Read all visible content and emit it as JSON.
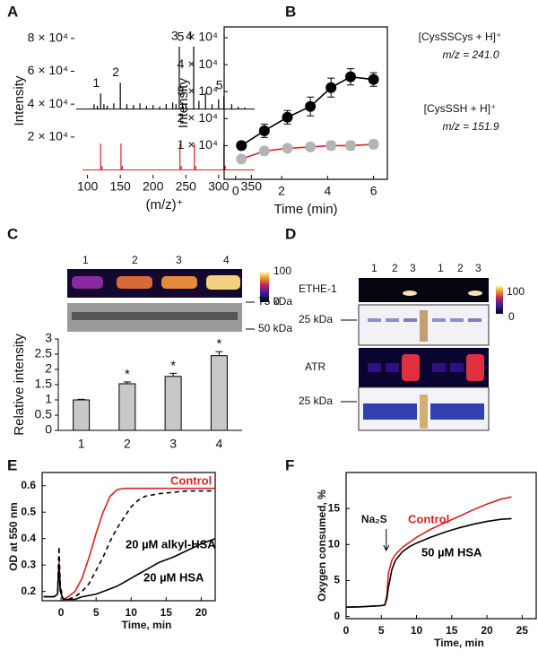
{
  "chart_data": [
    {
      "type": "spectrum",
      "panel": "A",
      "xlabel": "(m/z)⁺",
      "ylabel": "Intensity",
      "xlim": [
        80,
        355
      ],
      "ylim": [
        -3000,
        87000
      ],
      "xticks": [
        100,
        150,
        200,
        250,
        300,
        350
      ],
      "yticks": [
        {
          "value": 20000,
          "label": "2 × 10⁴"
        },
        {
          "value": 40000,
          "label": "4 × 10⁴"
        },
        {
          "value": 60000,
          "label": "6 × 10⁴"
        },
        {
          "value": 80000,
          "label": "8 × 10⁴"
        }
      ],
      "series": [
        {
          "color": "#000000",
          "baseline": 37000,
          "x": [
            110,
            115,
            120,
            125,
            130,
            140,
            150,
            160,
            170,
            180,
            190,
            200,
            210,
            220,
            230,
            235,
            240,
            245,
            250,
            262,
            270,
            280,
            290,
            300,
            308,
            320,
            330,
            340
          ],
          "values": [
            40000,
            39000,
            46500,
            40000,
            39000,
            40500,
            53000,
            40000,
            39500,
            40500,
            39000,
            39500,
            38500,
            40000,
            41000,
            40000,
            75000,
            41000,
            40500,
            75000,
            42000,
            47000,
            40000,
            43000,
            45000,
            40000,
            38500,
            38000
          ],
          "peak_labels": [
            null,
            null,
            "1",
            null,
            null,
            null,
            "2",
            null,
            null,
            null,
            null,
            null,
            null,
            null,
            null,
            null,
            "3",
            null,
            null,
            "4",
            null,
            null,
            null,
            null,
            "5",
            null,
            null,
            null
          ]
        },
        {
          "color": "#e02020",
          "baseline": 0,
          "x": [
            120,
            122,
            151,
            153,
            241,
            243,
            263,
            265,
            308,
            310
          ],
          "values": [
            16000,
            2500,
            16000,
            2500,
            16000,
            2500,
            16000,
            2500,
            16000,
            2500
          ]
        }
      ]
    },
    {
      "type": "line",
      "panel": "B",
      "xlabel": "Time (min)",
      "ylabel": "Intensity",
      "frame": true,
      "xlim": [
        -0.5,
        6.6
      ],
      "ylim": [
        -2500,
        54000
      ],
      "xticks": [
        0,
        2,
        4,
        6
      ],
      "yticks": [
        {
          "value": 10000,
          "label": "1 × 10⁴"
        },
        {
          "value": 20000,
          "label": "2 × 10⁴"
        },
        {
          "value": 30000,
          "label": "3 × 10⁴"
        },
        {
          "value": 40000,
          "label": "4 × 10⁴"
        },
        {
          "value": 50000,
          "label": "5 × 10⁴"
        }
      ],
      "x": [
        0.25,
        1.25,
        2.25,
        3.25,
        4.15,
        5,
        6
      ],
      "series": [
        {
          "name": "[CysSSCys + H]⁺",
          "note": "m/z = 241.0",
          "color": "#000000",
          "marker": "#000000",
          "values": [
            10000,
            15500,
            20500,
            24500,
            31500,
            35500,
            34500
          ],
          "errors": [
            1500,
            2500,
            2500,
            3500,
            3500,
            3000,
            2500
          ]
        },
        {
          "name": "[CysSSH + H]⁺",
          "note": "m/z = 151.9",
          "color": "#e02020",
          "marker": "#b4b4b4",
          "values": [
            5000,
            8000,
            9000,
            9500,
            10000,
            10000,
            10500
          ],
          "errors": [
            1000,
            1000,
            1000,
            1000,
            1500,
            1500,
            1500
          ]
        }
      ]
    },
    {
      "type": "bar",
      "panel": "C",
      "ylabel": "Relative intensity",
      "color": "#c8c8c8",
      "categories": [
        "1",
        "2",
        "3",
        "4"
      ],
      "values": [
        1,
        1.53,
        1.77,
        2.45
      ],
      "errors": [
        0.02,
        0.06,
        0.1,
        0.13
      ],
      "significance": [
        null,
        "*",
        "*",
        "*"
      ],
      "ylim": [
        0,
        3
      ],
      "yticks": [
        0,
        0.5,
        1,
        1.5,
        2,
        2.5,
        3
      ],
      "gel": {
        "lanes": [
          "1",
          "2",
          "3",
          "4"
        ],
        "markers": [
          "75 kDa",
          "50 kDa"
        ],
        "colorbar": [
          "100",
          "0"
        ]
      }
    },
    {
      "type": "line",
      "panel": "E",
      "xlabel": "Time, min",
      "ylabel": "OD at 550 nm",
      "frame": true,
      "xlim": [
        -2.7,
        22
      ],
      "ylim": [
        0.165,
        0.65
      ],
      "xticks": [
        0,
        5,
        10,
        15,
        20
      ],
      "yticks": [
        0.2,
        0.3,
        0.4,
        0.5,
        0.6
      ],
      "x": [
        -2.5,
        -1,
        -0.5,
        -0.3,
        -0.1,
        0.3,
        1,
        2,
        3,
        4,
        5,
        6,
        7,
        8,
        9,
        10,
        11,
        12,
        14,
        16,
        18,
        20,
        22
      ],
      "series": [
        {
          "name": "Control",
          "color": "#e02020",
          "values": [
            0.18,
            0.18,
            0.19,
            0.32,
            0.2,
            0.17,
            0.18,
            0.2,
            0.25,
            0.33,
            0.42,
            0.5,
            0.56,
            0.585,
            0.59,
            0.59,
            0.59,
            0.59,
            0.59,
            0.59,
            0.59,
            0.59,
            0.59
          ]
        },
        {
          "name": "20 µM alkyl-HSA",
          "color": "#000000",
          "dash": true,
          "values": [
            0.18,
            0.18,
            0.19,
            0.37,
            0.22,
            0.17,
            0.17,
            0.18,
            0.2,
            0.23,
            0.28,
            0.33,
            0.39,
            0.44,
            0.48,
            0.52,
            0.545,
            0.56,
            0.57,
            0.575,
            0.58,
            0.58,
            0.58
          ]
        },
        {
          "name": "20 µM HSA",
          "color": "#000000",
          "values": [
            0.18,
            0.18,
            0.19,
            0.3,
            0.2,
            0.17,
            0.17,
            0.17,
            0.18,
            0.185,
            0.19,
            0.2,
            0.21,
            0.22,
            0.235,
            0.25,
            0.265,
            0.28,
            0.31,
            0.33,
            0.355,
            0.38,
            0.4
          ]
        }
      ]
    },
    {
      "type": "line",
      "panel": "F",
      "xlabel": "Time, min",
      "ylabel": "Oxygen consumed, %",
      "frame": true,
      "xlim": [
        0,
        27
      ],
      "ylim": [
        -0.3,
        20
      ],
      "xticks": [
        0,
        5,
        10,
        15,
        20,
        25
      ],
      "yticks": [
        0,
        5,
        10,
        15
      ],
      "annotation": "Na₂S",
      "x": [
        0,
        2,
        4,
        5,
        5.5,
        5.8,
        6,
        6.5,
        7,
        8,
        9,
        10,
        12,
        14,
        16,
        18,
        20,
        22,
        23.5
      ],
      "series": [
        {
          "name": "Control",
          "color": "#e02020",
          "values": [
            1.3,
            1.35,
            1.45,
            1.5,
            1.6,
            3,
            6,
            7.8,
            8.6,
            9.6,
            10.3,
            11,
            12.1,
            13,
            13.9,
            14.8,
            15.6,
            16.3,
            16.6
          ]
        },
        {
          "name": "50 µM HSA",
          "color": "#000000",
          "values": [
            1.3,
            1.35,
            1.45,
            1.5,
            1.6,
            2.5,
            4,
            6.5,
            7.8,
            9,
            9.7,
            10.2,
            11,
            11.7,
            12.3,
            12.8,
            13.2,
            13.5,
            13.6
          ]
        }
      ]
    }
  ],
  "gels_d": {
    "panel": "D",
    "lanes": [
      "1",
      "2",
      "3",
      "1",
      "2",
      "3"
    ],
    "ethe": "ETHE-1",
    "atr": "ATR",
    "marker_top": "25 kDa",
    "marker_bottom": "25 kDa",
    "colorbar": [
      "100",
      "0"
    ]
  }
}
